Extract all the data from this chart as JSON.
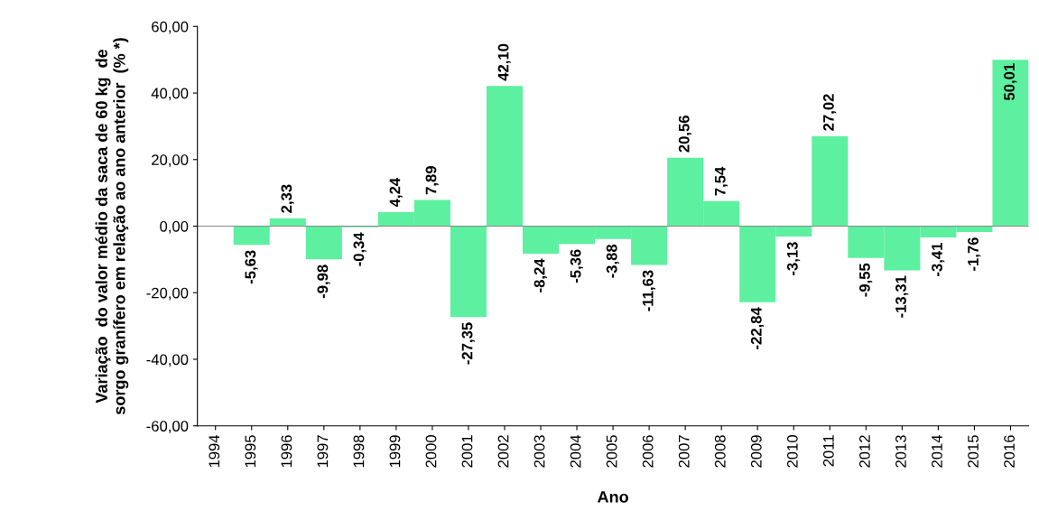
{
  "chart_data": {
    "type": "bar",
    "xlabel": "Ano",
    "ylabel": "Variação  do valor médio da saca de 60 kg  de\nsorgo granífero em relação ao ano anterior  (% *)",
    "categories": [
      "1994",
      "1995",
      "1996",
      "1997",
      "1998",
      "1999",
      "2000",
      "2001",
      "2002",
      "2003",
      "2004",
      "2005",
      "2006",
      "2007",
      "2008",
      "2009",
      "2010",
      "2011",
      "2012",
      "2013",
      "2014",
      "2015",
      "2016"
    ],
    "values": [
      null,
      -5.63,
      2.33,
      -9.98,
      -0.34,
      4.24,
      7.89,
      -27.35,
      42.1,
      -8.24,
      -5.36,
      -3.88,
      -11.63,
      20.56,
      7.54,
      -22.84,
      -3.13,
      27.02,
      -9.55,
      -13.31,
      -3.41,
      -1.76,
      50.01
    ],
    "value_labels": [
      null,
      "-5,63",
      "2,33",
      "-9,98",
      "-0,34",
      "4,24",
      "7,89",
      "-27,35",
      "42,10",
      "-8,24",
      "-5,36",
      "-3,88",
      "-11,63",
      "20,56",
      "7,54",
      "-22,84",
      "-3,13",
      "27,02",
      "-9,55",
      "-13,31",
      "-3,41",
      "-1,76",
      "50,01"
    ],
    "color": "#5cf0a0",
    "ylim": [
      -60,
      60
    ],
    "yticks": [
      {
        "value": -60,
        "label": "-60,00"
      },
      {
        "value": -40,
        "label": "-40,00"
      },
      {
        "value": -20,
        "label": "-20,00"
      },
      {
        "value": 0,
        "label": "0,00"
      },
      {
        "value": 20,
        "label": "20,00"
      },
      {
        "value": 40,
        "label": "40,00"
      },
      {
        "value": 60,
        "label": "60,00"
      }
    ],
    "ref_lines": [
      {
        "axis": "y",
        "value": 0,
        "color": "#888888"
      }
    ],
    "grid": false,
    "legend": false
  }
}
